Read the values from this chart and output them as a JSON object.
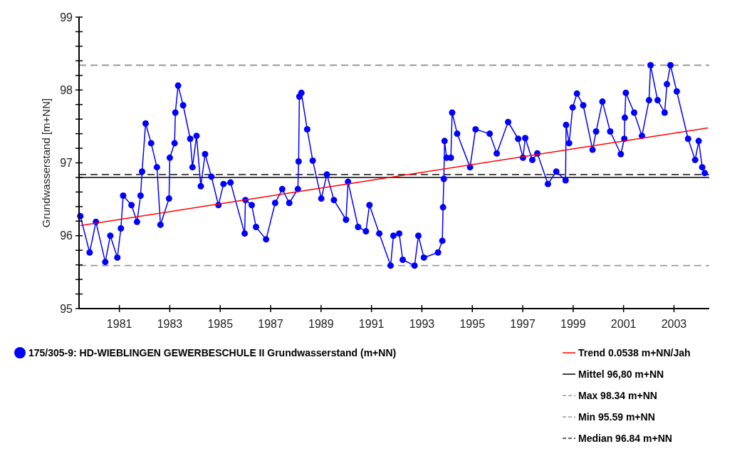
{
  "chart_data": {
    "type": "line",
    "ylabel": "Grundwasserstand [m+NN]",
    "xlim": [
      1979.4,
      2004.4
    ],
    "ylim": [
      95,
      99
    ],
    "xticks": [
      1981,
      1983,
      1985,
      1987,
      1989,
      1991,
      1993,
      1995,
      1997,
      1999,
      2001,
      2003
    ],
    "yticks": [
      95,
      {
        "value": 95.2,
        "label": null
      },
      {
        "value": 95.4,
        "label": null
      },
      {
        "value": 95.6,
        "label": null
      },
      {
        "value": 95.8,
        "label": null
      },
      96,
      {
        "value": 96.2,
        "label": null
      },
      {
        "value": 96.4,
        "label": null
      },
      {
        "value": 96.6,
        "label": null
      },
      {
        "value": 96.8,
        "label": null
      },
      97,
      {
        "value": 97.2,
        "label": null
      },
      {
        "value": 97.4,
        "label": null
      },
      {
        "value": 97.6,
        "label": null
      },
      {
        "value": 97.8,
        "label": null
      },
      98,
      {
        "value": 98.2,
        "label": null
      },
      {
        "value": 98.4,
        "label": null
      },
      {
        "value": 98.6,
        "label": null
      },
      {
        "value": 98.8,
        "label": null
      },
      99
    ],
    "grid": false,
    "legend": "bottom",
    "marker": "circle",
    "line_style": "solid",
    "series": [
      {
        "name": "175/305-9: HD-WIEBLINGEN GEWERBESCHULE II  Grundwasserstand (m+NN)",
        "color": "#0000ff",
        "x": [
          1979.45,
          1979.82,
          1980.07,
          1980.44,
          1980.64,
          1980.92,
          1981.06,
          1981.15,
          1981.48,
          1981.7,
          1981.84,
          1981.9,
          1982.04,
          1982.26,
          1982.49,
          1982.63,
          1982.97,
          1983.0,
          1983.19,
          1983.22,
          1983.33,
          1983.53,
          1983.81,
          1983.9,
          1984.06,
          1984.23,
          1984.4,
          1984.65,
          1984.93,
          1985.13,
          1985.41,
          1985.97,
          1986.0,
          1986.25,
          1986.42,
          1986.82,
          1987.18,
          1987.46,
          1987.74,
          1988.08,
          1988.11,
          1988.14,
          1988.22,
          1988.45,
          1988.67,
          1989.01,
          1989.23,
          1989.51,
          1989.99,
          1990.07,
          1990.47,
          1990.78,
          1990.92,
          1991.31,
          1991.76,
          1991.87,
          1992.1,
          1992.24,
          1992.71,
          1992.86,
          1993.08,
          1993.64,
          1993.81,
          1993.84,
          1993.87,
          1993.9,
          1993.98,
          1994.15,
          1994.2,
          1994.4,
          1994.91,
          1995.13,
          1995.69,
          1995.97,
          1996.42,
          1996.82,
          1997.01,
          1997.1,
          1997.38,
          1997.58,
          1998.0,
          1998.33,
          1998.7,
          1998.72,
          1998.84,
          1998.98,
          1999.15,
          1999.4,
          1999.77,
          1999.91,
          2000.16,
          2000.47,
          2000.89,
          2001.03,
          2001.05,
          2001.09,
          2001.42,
          2001.73,
          2002.01,
          2002.07,
          2002.35,
          2002.63,
          2002.72,
          2002.86,
          2003.11,
          2003.56,
          2003.84,
          2003.98,
          2004.12,
          2004.22
        ],
        "values": [
          96.27,
          95.77,
          96.19,
          95.64,
          96.0,
          95.7,
          96.1,
          96.55,
          96.42,
          96.19,
          96.55,
          96.88,
          97.54,
          97.27,
          96.94,
          96.15,
          96.51,
          97.07,
          97.27,
          97.69,
          98.06,
          97.79,
          97.33,
          96.94,
          97.37,
          96.68,
          97.12,
          96.81,
          96.42,
          96.71,
          96.73,
          96.03,
          96.49,
          96.42,
          96.12,
          95.95,
          96.45,
          96.64,
          96.45,
          96.64,
          97.02,
          97.91,
          97.96,
          97.46,
          97.03,
          96.51,
          96.84,
          96.49,
          96.22,
          96.74,
          96.12,
          96.06,
          96.42,
          96.03,
          95.59,
          96.0,
          96.03,
          95.67,
          95.59,
          96.0,
          95.7,
          95.77,
          95.93,
          96.39,
          96.78,
          97.3,
          97.07,
          97.07,
          97.69,
          97.4,
          96.94,
          97.46,
          97.4,
          97.13,
          97.56,
          97.33,
          97.07,
          97.34,
          97.04,
          97.13,
          96.71,
          96.88,
          96.76,
          97.52,
          97.27,
          97.76,
          97.95,
          97.79,
          97.18,
          97.43,
          97.84,
          97.43,
          97.12,
          97.33,
          97.62,
          97.96,
          97.69,
          97.37,
          97.86,
          98.34,
          97.86,
          97.69,
          98.08,
          98.34,
          97.98,
          97.33,
          97.04,
          97.3,
          96.94,
          96.86
        ]
      },
      {
        "name": "Trend 0.0538 m+NN/Jah",
        "type": "line",
        "marker": "none",
        "color": "#ff0000",
        "x": [
          1979.45,
          2004.35
        ],
        "values": [
          96.14,
          97.48
        ]
      }
    ],
    "ref_lines": [
      {
        "axis": "y",
        "value": 96.8,
        "label": "Mittel 96,80 m+NN",
        "color": "#000000",
        "line_style": "solid"
      },
      {
        "axis": "y",
        "value": 98.34,
        "label": "Max 98.34 m+NN",
        "color": "#999999",
        "line_style": "dashed"
      },
      {
        "axis": "y",
        "value": 95.59,
        "label": "Min 95.59 m+NN",
        "color": "#999999",
        "line_style": "dashed"
      },
      {
        "axis": "y",
        "value": 96.84,
        "label": "Median 96.84 m+NN",
        "color": "#333333",
        "line_style": "dashed"
      }
    ]
  }
}
